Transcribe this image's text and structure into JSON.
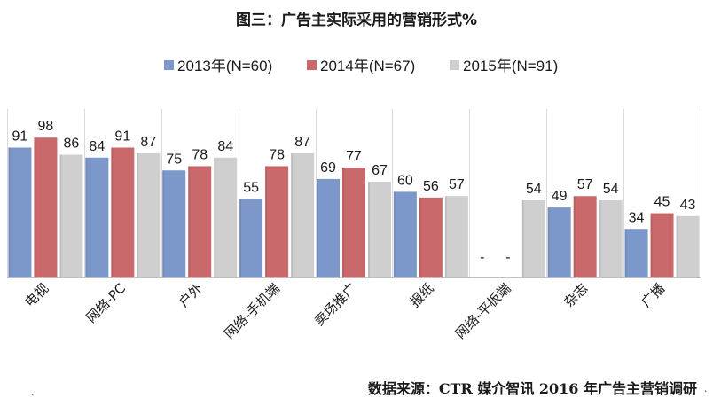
{
  "chart_data": {
    "type": "bar",
    "title": "图三：广告主实际采用的营销形式%",
    "categories": [
      "电视",
      "网络-PC",
      "户外",
      "网络-手机端",
      "卖场推广",
      "报纸",
      "网络-平板端",
      "杂志",
      "广播"
    ],
    "series": [
      {
        "name": "2013年(N=60)",
        "color": "#7c97c9",
        "values": [
          91,
          84,
          75,
          55,
          69,
          60,
          null,
          49,
          34
        ],
        "labels": [
          "91",
          "84",
          "75",
          "55",
          "69",
          "60",
          "-",
          "49",
          "34"
        ]
      },
      {
        "name": "2014年(N=67)",
        "color": "#c9696b",
        "values": [
          98,
          91,
          78,
          78,
          77,
          56,
          null,
          57,
          45
        ],
        "labels": [
          "98",
          "91",
          "78",
          "78",
          "77",
          "56",
          "-",
          "57",
          "45"
        ]
      },
      {
        "name": "2015年(N=91)",
        "color": "#cfcfcf",
        "values": [
          86,
          87,
          84,
          87,
          67,
          57,
          54,
          54,
          43
        ],
        "labels": [
          "86",
          "87",
          "84",
          "87",
          "67",
          "57",
          "54",
          "54",
          "43"
        ]
      }
    ],
    "ylim": [
      0,
      100
    ],
    "grid": true,
    "legend_position": "top-center",
    "source": "数据来源：CTR  媒介智讯  2016 年广告主营销调研"
  },
  "decorations": {
    "left_mark": "˛",
    "right_mark": "˛"
  }
}
